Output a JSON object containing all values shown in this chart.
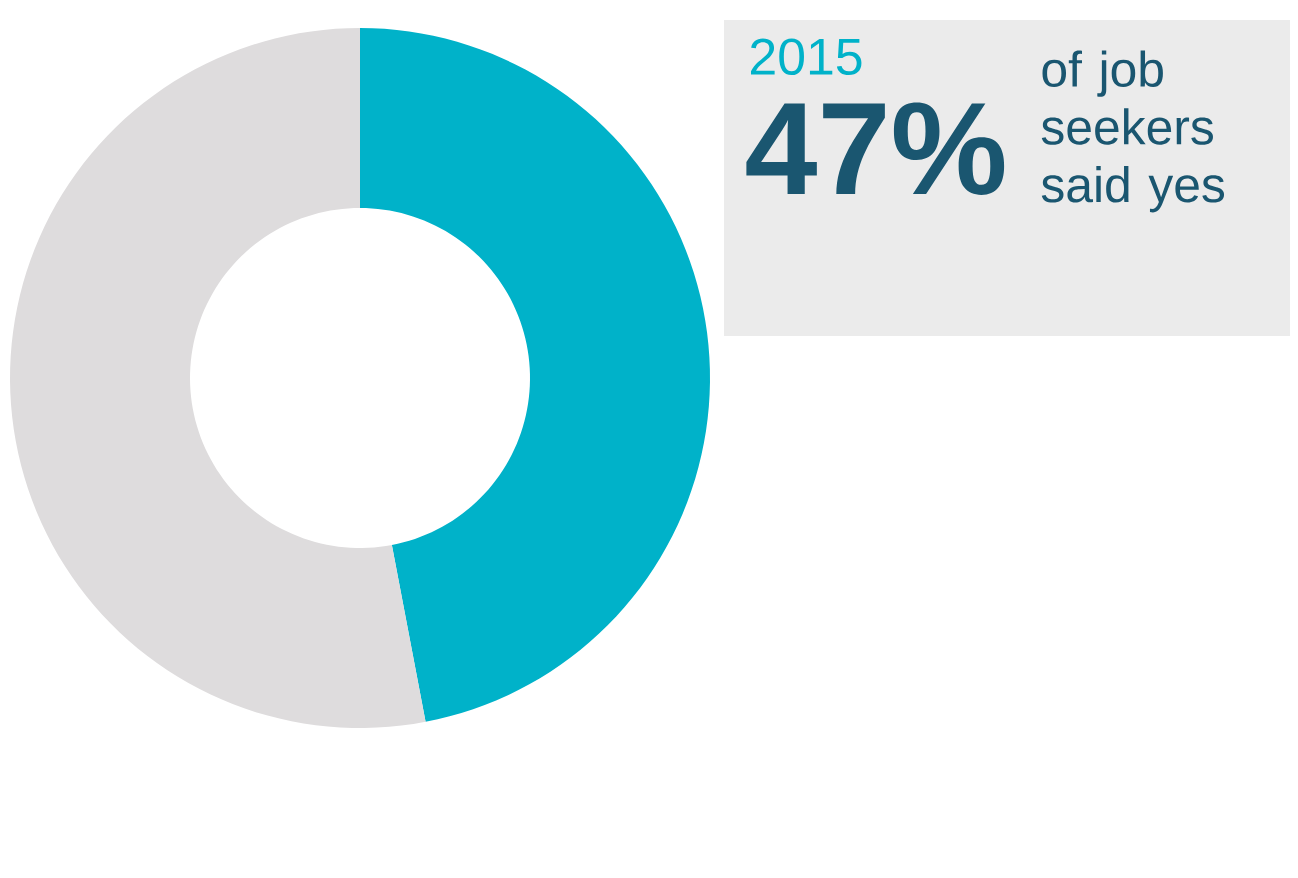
{
  "chart_data": {
    "type": "donut",
    "title": "2015",
    "categories": [
      null,
      null
    ],
    "values": [
      47,
      53
    ],
    "colors": [
      "#00b2c9",
      "#dedcdd"
    ],
    "value_labels": [
      "47%",
      null
    ],
    "annotations": [
      "of job seekers said yes"
    ]
  }
}
